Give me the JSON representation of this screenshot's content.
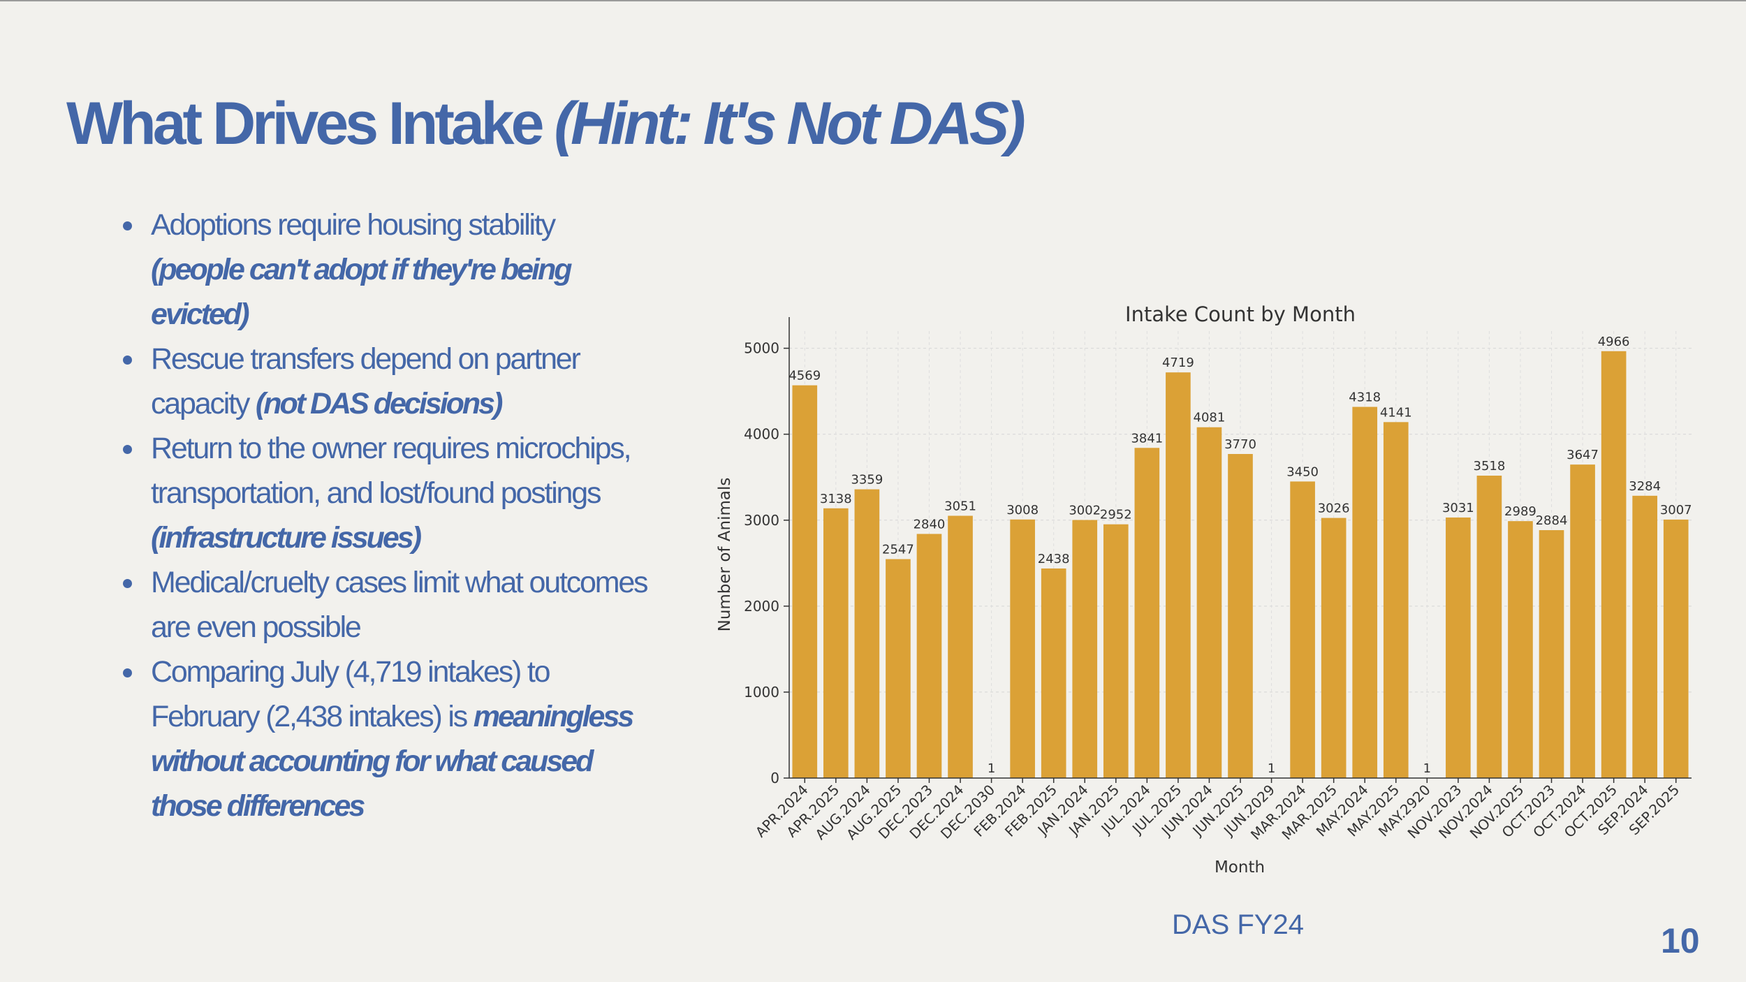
{
  "slide": {
    "title_main": "What Drives Intake",
    "title_hint": "(Hint: It's Not DAS)",
    "caption": "DAS FY24",
    "page_number": "10"
  },
  "bullets": [
    {
      "text": "Adoptions require housing stability ",
      "emph": "(people can't adopt if they're being evicted)"
    },
    {
      "text": "Rescue transfers depend on partner capacity ",
      "emph": "(not DAS decisions)"
    },
    {
      "text": "Return to the owner requires microchips, transportation, and lost/found postings ",
      "emph": "(infrastructure issues)"
    },
    {
      "text": "Medical/cruelty cases limit what outcomes are even possible",
      "emph": ""
    },
    {
      "text": "Comparing July (4,719 intakes) to February (2,438 intakes) is ",
      "emph": "meaningless without accounting for what caused those differences"
    }
  ],
  "chart_data": {
    "type": "bar",
    "title": "Intake Count by Month",
    "xlabel": "Month",
    "ylabel": "Number of Animals",
    "ylim": [
      0,
      5200
    ],
    "yticks": [
      0,
      1000,
      2000,
      3000,
      4000,
      5000
    ],
    "grid": true,
    "bar_color": "#dba136",
    "categories": [
      "APR.2024",
      "APR.2025",
      "AUG.2024",
      "AUG.2025",
      "DEC.2023",
      "DEC.2024",
      "DEC.2030",
      "FEB.2024",
      "FEB.2025",
      "JAN.2024",
      "JAN.2025",
      "JUL.2024",
      "JUL.2025",
      "JUN.2024",
      "JUN.2025",
      "JUN.2029",
      "MAR.2024",
      "MAR.2025",
      "MAY.2024",
      "MAY.2025",
      "MAY.2920",
      "NOV.2023",
      "NOV.2024",
      "NOV.2025",
      "OCT.2023",
      "OCT.2024",
      "OCT.2025",
      "SEP.2024",
      "SEP.2025"
    ],
    "values": [
      4569,
      3138,
      3359,
      2547,
      2840,
      3051,
      1,
      3008,
      2438,
      3002,
      2952,
      3841,
      4719,
      4081,
      3770,
      1,
      3450,
      3026,
      4318,
      4141,
      1,
      3031,
      3518,
      2989,
      2884,
      3647,
      4966,
      3284,
      3007
    ]
  }
}
